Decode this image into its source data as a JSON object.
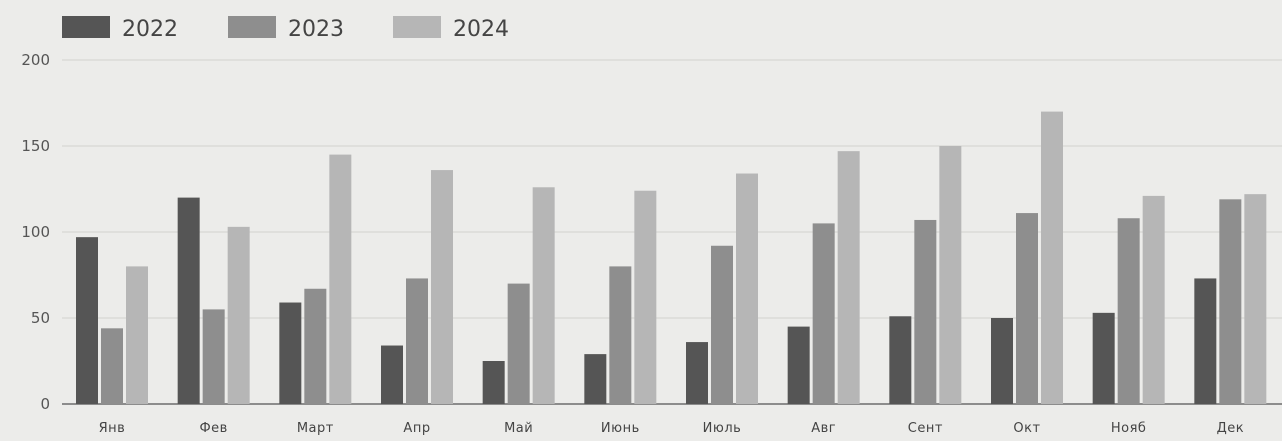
{
  "chart_data": {
    "type": "bar",
    "categories": [
      "Янв",
      "Фев",
      "Март",
      "Апр",
      "Май",
      "Июнь",
      "Июль",
      "Авг",
      "Сент",
      "Окт",
      "Нояб",
      "Дек"
    ],
    "series": [
      {
        "name": "2022",
        "color": "#555555",
        "values": [
          97,
          120,
          59,
          34,
          25,
          29,
          36,
          45,
          51,
          50,
          53,
          73
        ]
      },
      {
        "name": "2023",
        "color": "#8e8e8e",
        "values": [
          44,
          55,
          67,
          73,
          70,
          80,
          92,
          105,
          107,
          111,
          108,
          119
        ]
      },
      {
        "name": "2024",
        "color": "#b6b6b6",
        "values": [
          80,
          103,
          145,
          136,
          126,
          124,
          134,
          147,
          150,
          170,
          121,
          122
        ]
      }
    ],
    "y_ticks": [
      "0",
      "50",
      "100",
      "150",
      "200"
    ],
    "ylim": [
      0,
      200
    ],
    "grid": true,
    "legend": "top-left"
  }
}
